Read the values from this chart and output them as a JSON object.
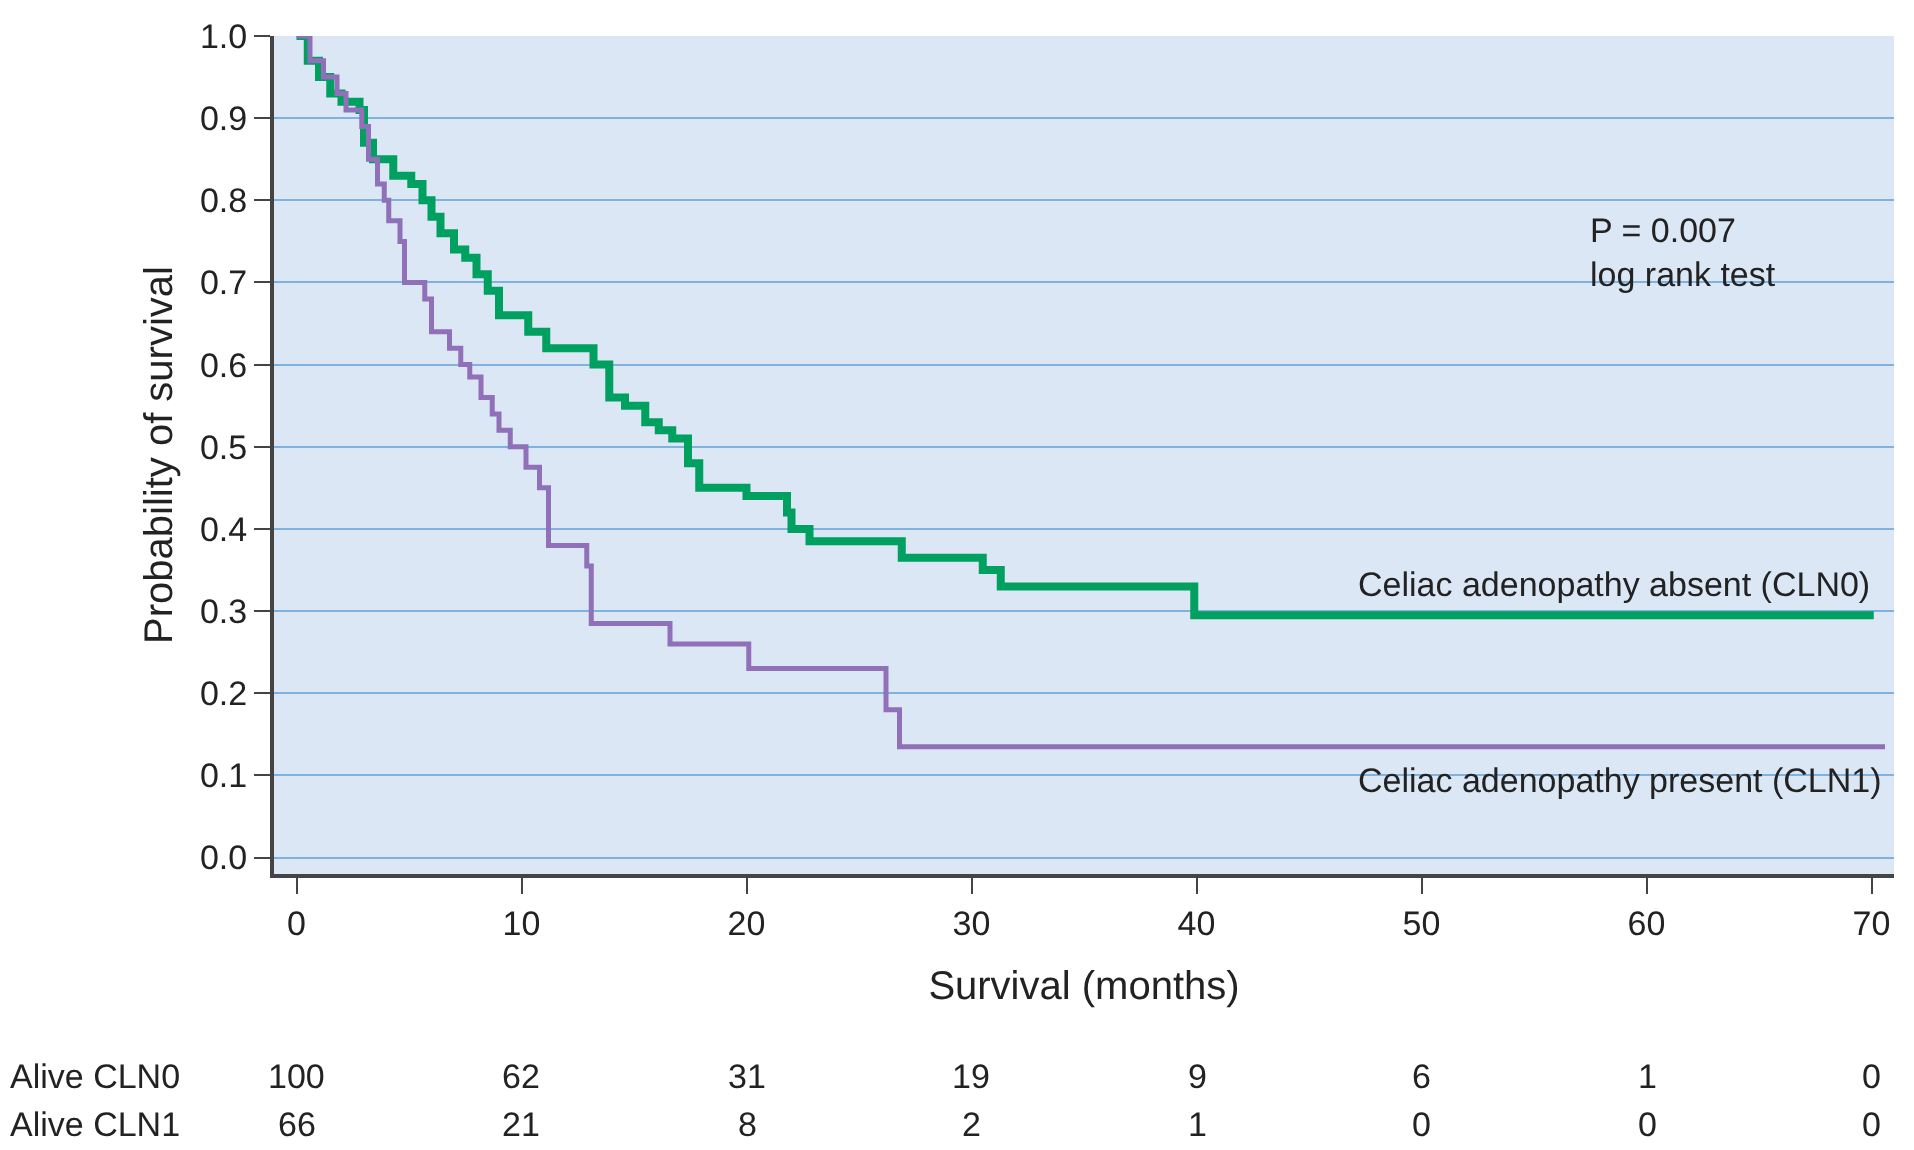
{
  "chart_data": {
    "type": "step",
    "xlabel": "Survival (months)",
    "ylabel": "Probability of survival",
    "xlim": [
      -1,
      71
    ],
    "xticks": [
      0,
      10,
      20,
      30,
      40,
      50,
      60,
      70
    ],
    "ylim": [
      -0.02,
      1.0
    ],
    "yticks": [
      {
        "value": 0,
        "label": "0.0"
      },
      0.1,
      0.2,
      0.3,
      0.4,
      0.5,
      0.6,
      0.7,
      0.8,
      0.9,
      {
        "value": 1,
        "label": "1.0"
      }
    ],
    "grid": "y",
    "legend": false,
    "marker": "none",
    "line_style": "solid",
    "series": [
      {
        "name": "Celiac adenopathy absent (CLN0)",
        "color": "#00a060",
        "x": [
          0,
          0.5,
          1,
          1.5,
          2,
          2.8,
          3,
          3.4,
          4.3,
          5.1,
          5.6,
          6,
          6.4,
          7,
          7.5,
          8,
          8.5,
          9,
          10.3,
          11.1,
          13.2,
          13.9,
          14.6,
          15.5,
          16.1,
          16.7,
          17.4,
          17.9,
          20,
          21.8,
          22,
          22.8,
          26.9,
          30.5,
          31.3,
          39.9,
          70.1
        ],
        "values": [
          1.0,
          0.97,
          0.95,
          0.93,
          0.92,
          0.91,
          0.87,
          0.85,
          0.83,
          0.82,
          0.8,
          0.78,
          0.76,
          0.74,
          0.73,
          0.71,
          0.69,
          0.66,
          0.64,
          0.62,
          0.6,
          0.56,
          0.55,
          0.53,
          0.52,
          0.51,
          0.48,
          0.45,
          0.44,
          0.42,
          0.4,
          0.385,
          0.365,
          0.35,
          0.33,
          0.295,
          0.295
        ]
      },
      {
        "name": "Celiac adenopathy present (CLN1)",
        "color": "#9070b8",
        "x": [
          0,
          0.6,
          1.2,
          1.8,
          2.2,
          2.9,
          3.2,
          3.6,
          3.9,
          4.1,
          4.6,
          4.8,
          5.7,
          6,
          6.8,
          7.3,
          7.7,
          8.2,
          8.7,
          9,
          9.5,
          10.2,
          10.8,
          11.2,
          12.9,
          13.1,
          16.6,
          20.1,
          26.2,
          26.8,
          70.6
        ],
        "values": [
          1.0,
          0.97,
          0.95,
          0.93,
          0.91,
          0.89,
          0.85,
          0.82,
          0.8,
          0.775,
          0.75,
          0.7,
          0.68,
          0.64,
          0.62,
          0.6,
          0.585,
          0.56,
          0.54,
          0.52,
          0.5,
          0.475,
          0.45,
          0.38,
          0.355,
          0.285,
          0.26,
          0.23,
          0.18,
          0.135,
          0.135
        ]
      }
    ],
    "annotations": [
      "P = 0.007",
      "log rank test",
      "Alive CLN0",
      "100",
      "62",
      "31",
      "19",
      "9",
      "6",
      "1",
      "0",
      "Alive CLN1",
      "66",
      "21",
      "8",
      "2",
      "1",
      "0",
      "0",
      "0"
    ]
  }
}
